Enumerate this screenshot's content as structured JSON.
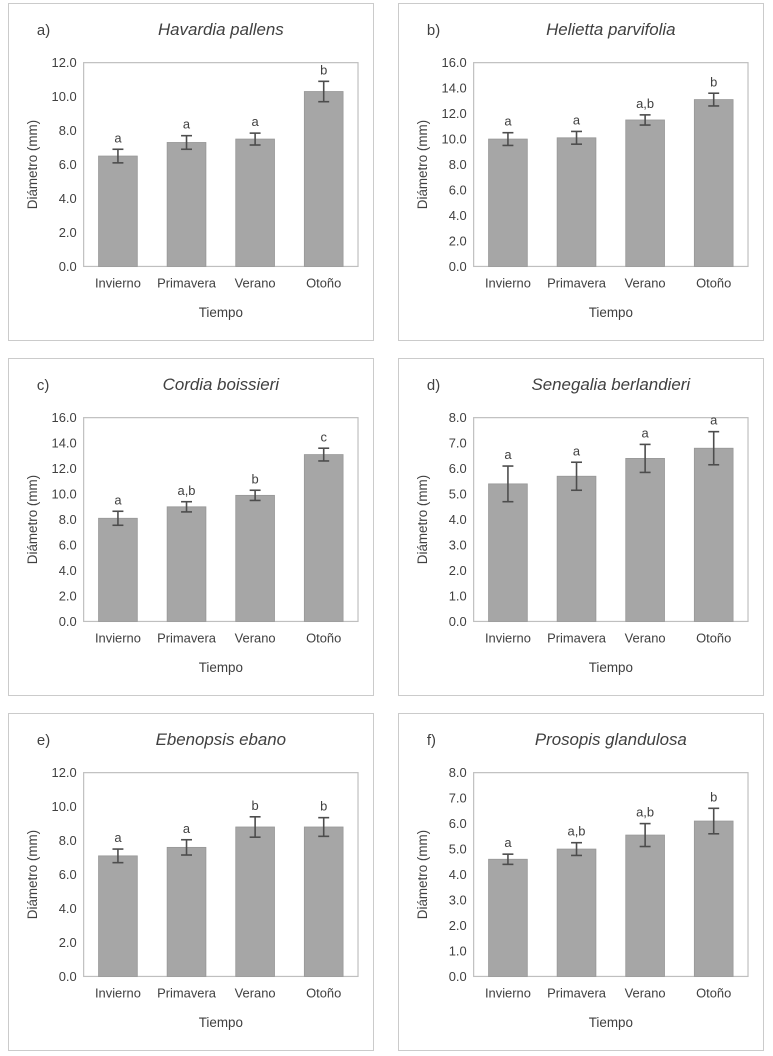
{
  "figure": {
    "layout": "2x3-grid-of-bar-charts",
    "colors": {
      "bar_fill": "#a6a6a6",
      "bar_stroke": "#979797",
      "error_bar": "#4d4d4d",
      "plot_border": "#bfbfbf",
      "panel_border": "#cbcbcb",
      "text": "#404040",
      "background": "#ffffff"
    }
  },
  "chart_data": [
    {
      "type": "bar",
      "panel_label": "a)",
      "title": "Havardia pallens",
      "xlabel": "Tiempo",
      "ylabel": "Diámetro (mm)",
      "categories": [
        "Invierno",
        "Primavera",
        "Verano",
        "Otoño"
      ],
      "values": [
        6.5,
        7.3,
        7.5,
        10.3
      ],
      "errors": [
        0.4,
        0.4,
        0.35,
        0.6
      ],
      "sig_letters": [
        "a",
        "a",
        "a",
        "b"
      ],
      "ylim": [
        0,
        12
      ],
      "ytick_step": 2,
      "ytick_labels": [
        "0.0",
        "2.0",
        "4.0",
        "6.0",
        "8.0",
        "10.0",
        "12.0"
      ],
      "grid": false,
      "legend": false
    },
    {
      "type": "bar",
      "panel_label": "b)",
      "title": "Helietta parvifolia",
      "xlabel": "Tiempo",
      "ylabel": "Diámetro (mm)",
      "categories": [
        "Invierno",
        "Primavera",
        "Verano",
        "Otoño"
      ],
      "values": [
        10.0,
        10.1,
        11.5,
        13.1
      ],
      "errors": [
        0.5,
        0.5,
        0.4,
        0.5
      ],
      "sig_letters": [
        "a",
        "a",
        "a,b",
        "b"
      ],
      "ylim": [
        0,
        16
      ],
      "ytick_step": 2,
      "ytick_labels": [
        "0.0",
        "2.0",
        "4.0",
        "6.0",
        "8.0",
        "10.0",
        "12.0",
        "14.0",
        "16.0"
      ],
      "grid": false,
      "legend": false
    },
    {
      "type": "bar",
      "panel_label": "c)",
      "title": "Cordia boissieri",
      "xlabel": "Tiempo",
      "ylabel": "Diámetro (mm)",
      "categories": [
        "Invierno",
        "Primavera",
        "Verano",
        "Otoño"
      ],
      "values": [
        8.1,
        9.0,
        9.9,
        13.1
      ],
      "errors": [
        0.55,
        0.4,
        0.4,
        0.5
      ],
      "sig_letters": [
        "a",
        "a,b",
        "b",
        "c"
      ],
      "ylim": [
        0,
        16
      ],
      "ytick_step": 2,
      "ytick_labels": [
        "0.0",
        "2.0",
        "4.0",
        "6.0",
        "8.0",
        "10.0",
        "12.0",
        "14.0",
        "16.0"
      ],
      "grid": false,
      "legend": false
    },
    {
      "type": "bar",
      "panel_label": "d)",
      "title": "Senegalia berlandieri",
      "xlabel": "Tiempo",
      "ylabel": "Diámetro (mm)",
      "categories": [
        "Invierno",
        "Primavera",
        "Verano",
        "Otoño"
      ],
      "values": [
        5.4,
        5.7,
        6.4,
        6.8
      ],
      "errors": [
        0.7,
        0.55,
        0.55,
        0.65
      ],
      "sig_letters": [
        "a",
        "a",
        "a",
        "a"
      ],
      "ylim": [
        0,
        8
      ],
      "ytick_step": 1,
      "ytick_labels": [
        "0.0",
        "1.0",
        "2.0",
        "3.0",
        "4.0",
        "5.0",
        "6.0",
        "7.0",
        "8.0"
      ],
      "grid": false,
      "legend": false
    },
    {
      "type": "bar",
      "panel_label": "e)",
      "title": "Ebenopsis ebano",
      "xlabel": "Tiempo",
      "ylabel": "Diámetro (mm)",
      "categories": [
        "Invierno",
        "Primavera",
        "Verano",
        "Otoño"
      ],
      "values": [
        7.1,
        7.6,
        8.8,
        8.8
      ],
      "errors": [
        0.4,
        0.45,
        0.6,
        0.55
      ],
      "sig_letters": [
        "a",
        "a",
        "b",
        "b"
      ],
      "ylim": [
        0,
        12
      ],
      "ytick_step": 2,
      "ytick_labels": [
        "0.0",
        "2.0",
        "4.0",
        "6.0",
        "8.0",
        "10.0",
        "12.0"
      ],
      "grid": false,
      "legend": false
    },
    {
      "type": "bar",
      "panel_label": "f)",
      "title": "Prosopis glandulosa",
      "xlabel": "Tiempo",
      "ylabel": "Diámetro (mm)",
      "categories": [
        "Invierno",
        "Primavera",
        "Verano",
        "Otoño"
      ],
      "values": [
        4.6,
        5.0,
        5.55,
        6.1
      ],
      "errors": [
        0.2,
        0.25,
        0.45,
        0.5
      ],
      "sig_letters": [
        "a",
        "a,b",
        "a,b",
        "b"
      ],
      "ylim": [
        0,
        8
      ],
      "ytick_step": 1,
      "ytick_labels": [
        "0.0",
        "1.0",
        "2.0",
        "3.0",
        "4.0",
        "5.0",
        "6.0",
        "7.0",
        "8.0"
      ],
      "grid": false,
      "legend": false
    }
  ]
}
